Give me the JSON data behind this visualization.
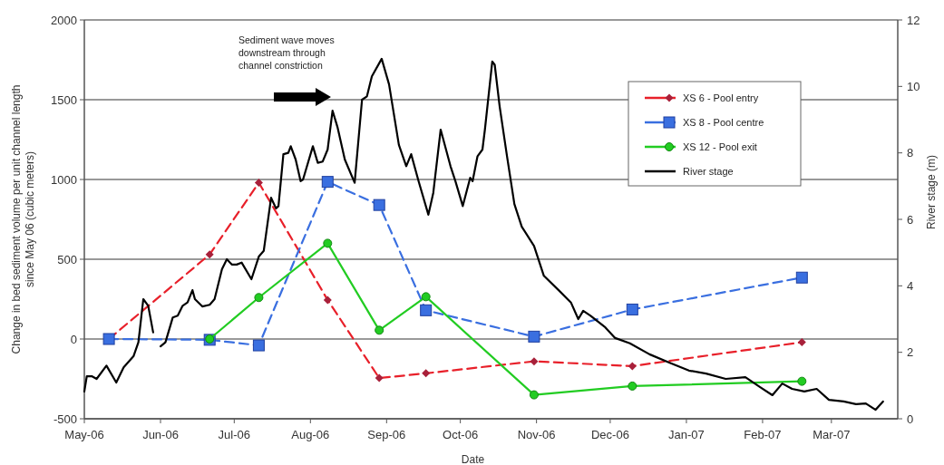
{
  "chart_data": {
    "type": "line",
    "xlabel": "Date",
    "ylabel": "Change in bed sediment volume per unit channel length since May 06 (cubic meters)",
    "y2label": "River stage (m)",
    "annotations": [
      "Sediment wave moves downstream through channel constriction"
    ],
    "xlim": [
      "2006-05-01",
      "2007-03-28"
    ],
    "xticks": [
      {
        "value": "2006-05-01",
        "label": "May-06"
      },
      {
        "value": "2006-06-01",
        "label": "Jun-06"
      },
      {
        "value": "2006-07-01",
        "label": "Jul-06"
      },
      {
        "value": "2006-08-01",
        "label": "Aug-06"
      },
      {
        "value": "2006-09-01",
        "label": "Sep-06"
      },
      {
        "value": "2006-10-01",
        "label": "Oct-06"
      },
      {
        "value": "2006-11-01",
        "label": "Nov-06"
      },
      {
        "value": "2006-12-01",
        "label": "Dec-06"
      },
      {
        "value": "2007-01-01",
        "label": "Jan-07"
      },
      {
        "value": "2007-02-01",
        "label": "Feb-07"
      },
      {
        "value": "2007-03-01",
        "label": "Mar-07"
      }
    ],
    "ylim": [
      -500,
      2000
    ],
    "yticks": [
      -500,
      0,
      500,
      1000,
      1500,
      2000
    ],
    "y2lim": [
      0,
      12
    ],
    "y2ticks": [
      0,
      2,
      4,
      6,
      8,
      10,
      12
    ],
    "grid": "y",
    "legend": "top right",
    "series": [
      {
        "name": "XS 6 - Pool entry",
        "color": "#e8202a",
        "marker": "diamond",
        "line_style": "dashed",
        "x": [
          "2006-05-11",
          "2006-06-21",
          "2006-07-11",
          "2006-08-08",
          "2006-08-29",
          "2006-09-17",
          "2006-10-31",
          "2006-12-10",
          "2007-02-17"
        ],
        "values": [
          0,
          530,
          980,
          245,
          -245,
          -215,
          -140,
          -170,
          -20
        ]
      },
      {
        "name": "XS 8 - Pool centre",
        "color": "#3a6fe0",
        "marker": "square",
        "line_style": "dashed",
        "x": [
          "2006-05-11",
          "2006-06-21",
          "2006-07-11",
          "2006-08-08",
          "2006-08-29",
          "2006-09-17",
          "2006-10-31",
          "2006-12-10",
          "2007-02-17"
        ],
        "values": [
          0,
          -5,
          -40,
          985,
          840,
          180,
          15,
          185,
          385
        ]
      },
      {
        "name": "XS 12 - Pool exit",
        "color": "#22cc22",
        "marker": "circle",
        "line_style": "solid",
        "x": [
          "2006-06-21",
          "2006-07-11",
          "2006-08-08",
          "2006-08-29",
          "2006-09-17",
          "2006-10-31",
          "2006-12-10",
          "2007-02-17"
        ],
        "values": [
          0,
          260,
          600,
          55,
          265,
          -350,
          -295,
          -265
        ]
      },
      {
        "name": "River stage",
        "color": "#000000",
        "marker": "none",
        "line_style": "solid",
        "axis": "y2",
        "x": [
          "2006-05-01",
          "2006-05-02",
          "2006-05-04",
          "2006-05-06",
          "2006-05-10",
          "2006-05-14",
          "2006-05-17",
          "2006-05-21",
          "2006-05-23",
          "2006-05-25",
          "2006-05-27",
          "2006-05-29",
          "2006-05-31",
          "2006-06-01",
          "2006-06-03",
          "2006-06-06",
          "2006-06-08",
          "2006-06-10",
          "2006-06-12",
          "2006-06-14",
          "2006-06-15",
          "2006-06-18",
          "2006-06-21",
          "2006-06-23",
          "2006-06-26",
          "2006-06-28",
          "2006-06-30",
          "2006-07-02",
          "2006-07-04",
          "2006-07-08",
          "2006-07-11",
          "2006-07-13",
          "2006-07-16",
          "2006-07-18",
          "2006-07-19",
          "2006-07-21",
          "2006-07-23",
          "2006-07-24",
          "2006-07-26",
          "2006-07-28",
          "2006-07-29",
          "2006-08-02",
          "2006-08-04",
          "2006-08-06",
          "2006-08-08",
          "2006-08-10",
          "2006-08-12",
          "2006-08-15",
          "2006-08-19",
          "2006-08-22",
          "2006-08-24",
          "2006-08-26",
          "2006-08-30",
          "2006-09-02",
          "2006-09-06",
          "2006-09-09",
          "2006-09-11",
          "2006-09-14",
          "2006-09-18",
          "2006-09-20",
          "2006-09-23",
          "2006-09-27",
          "2006-09-29",
          "2006-10-02",
          "2006-10-05",
          "2006-10-06",
          "2006-10-08",
          "2006-10-10",
          "2006-10-11",
          "2006-10-14",
          "2006-10-15",
          "2006-10-17",
          "2006-10-20",
          "2006-10-23",
          "2006-10-26",
          "2006-10-31",
          "2006-11-04",
          "2006-11-10",
          "2006-11-15",
          "2006-11-18",
          "2006-11-20",
          "2006-11-23",
          "2006-11-29",
          "2006-12-03",
          "2006-12-09",
          "2006-12-17",
          "2006-12-25",
          "2007-01-02",
          "2007-01-09",
          "2007-01-17",
          "2007-01-25",
          "2007-01-31",
          "2007-02-05",
          "2007-02-09",
          "2007-02-13",
          "2007-02-18",
          "2007-02-23",
          "2007-02-28",
          "2007-03-06",
          "2007-03-11",
          "2007-03-15",
          "2007-03-19",
          "2007-03-22"
        ],
        "values": [
          0.82,
          1.28,
          1.28,
          1.2,
          1.6,
          1.09,
          1.55,
          1.88,
          2.3,
          3.6,
          3.4,
          2.6,
          null,
          2.18,
          2.3,
          3.05,
          3.1,
          3.4,
          3.5,
          3.87,
          3.6,
          3.38,
          3.43,
          3.6,
          4.5,
          4.8,
          4.64,
          4.64,
          4.7,
          4.2,
          4.88,
          5.05,
          6.65,
          6.33,
          6.4,
          7.96,
          8.0,
          8.2,
          7.8,
          7.15,
          7.2,
          8.2,
          7.7,
          7.74,
          8.1,
          9.27,
          8.78,
          7.8,
          7.1,
          9.6,
          9.7,
          10.3,
          10.83,
          10.06,
          8.24,
          7.6,
          7.96,
          7.15,
          6.14,
          6.8,
          8.7,
          7.6,
          7.15,
          6.4,
          7.25,
          7.15,
          7.9,
          8.1,
          8.7,
          10.75,
          10.65,
          9.4,
          7.9,
          6.46,
          5.78,
          5.2,
          4.3,
          3.87,
          3.5,
          3.0,
          3.25,
          3.1,
          2.75,
          2.43,
          2.27,
          1.94,
          1.69,
          1.45,
          1.36,
          1.2,
          1.25,
          0.95,
          0.71,
          1.06,
          0.9,
          0.82,
          0.9,
          0.57,
          0.52,
          0.44,
          0.46,
          0.27,
          0.52
        ]
      }
    ]
  }
}
